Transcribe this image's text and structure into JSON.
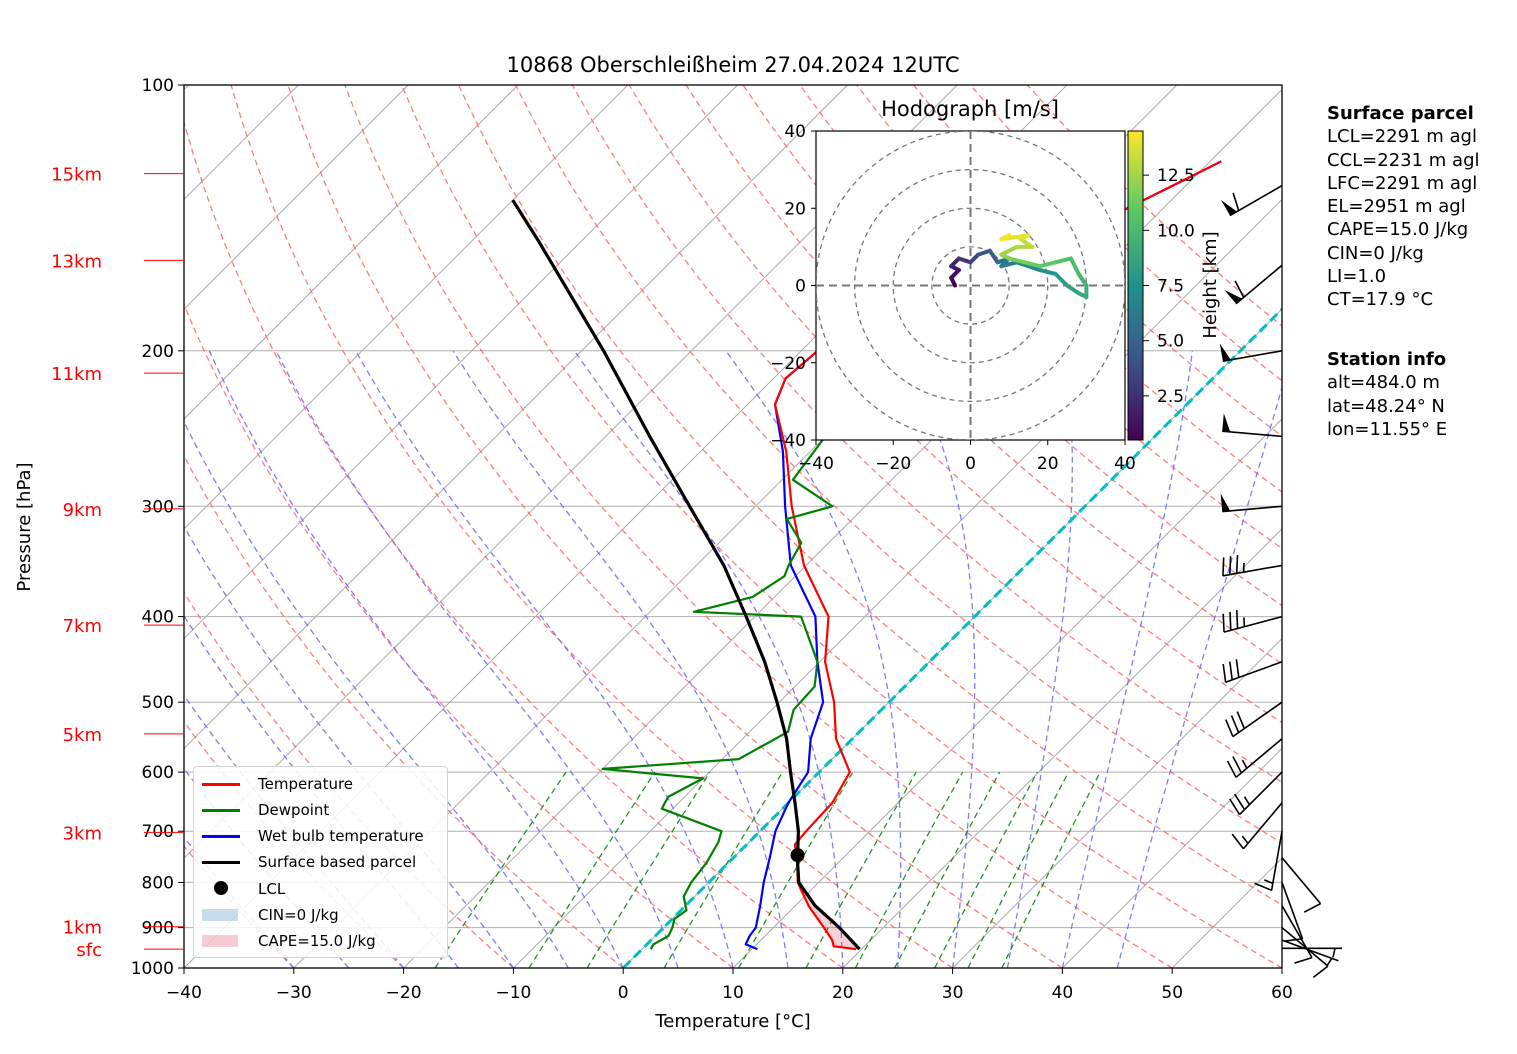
{
  "chart_data": {
    "type": "skew-t",
    "title": "10868 Oberschleißheim 27.04.2024 12UTC",
    "xlabel": "Temperature [°C]",
    "ylabel": "Pressure [hPa]",
    "xlim": [
      -40,
      60
    ],
    "ylim": [
      1000,
      100
    ],
    "x_ticks": [
      "−40",
      "−30",
      "−20",
      "−10",
      "0",
      "10",
      "20",
      "30",
      "40",
      "50",
      "60"
    ],
    "y_ticks": [
      "100",
      "200",
      "300",
      "400",
      "500",
      "600",
      "700",
      "800",
      "900",
      "1000"
    ],
    "height_labels": [
      {
        "label": "15km",
        "p": 126
      },
      {
        "label": "13km",
        "p": 158
      },
      {
        "label": "11km",
        "p": 212
      },
      {
        "label": "9km",
        "p": 302
      },
      {
        "label": "7km",
        "p": 409
      },
      {
        "label": "5km",
        "p": 543
      },
      {
        "label": "3km",
        "p": 702
      },
      {
        "label": "1km",
        "p": 898
      },
      {
        "label": "sfc",
        "p": 952
      }
    ],
    "legend": {
      "placement": "lower-left",
      "entries": [
        "Temperature",
        "Dewpoint",
        "Wet bulb temperature",
        "Surface based parcel",
        "LCL",
        "CIN=0 J/kg",
        "CAPE=15.0 J/kg"
      ]
    },
    "colors": {
      "temperature": "#ff0000",
      "dewpoint": "#008000",
      "wetbulb": "#0000ff",
      "parcel": "#000000",
      "dry_adiabat": "#ff6666",
      "moist_adiabat": "#6666ff",
      "mixing_ratio": "#008000",
      "zero_isotherm": "#00bfbf"
    },
    "series": [
      {
        "name": "Temperature",
        "points": [
          [
            952,
            19.5
          ],
          [
            945,
            17.2
          ],
          [
            930,
            16.5
          ],
          [
            900,
            14.6
          ],
          [
            850,
            11.2
          ],
          [
            800,
            8.1
          ],
          [
            750,
            5.8
          ],
          [
            725,
            4.4
          ],
          [
            700,
            4.2
          ],
          [
            650,
            4.0
          ],
          [
            600,
            2.8
          ],
          [
            550,
            -1.5
          ],
          [
            500,
            -5.0
          ],
          [
            450,
            -9.5
          ],
          [
            400,
            -13.3
          ],
          [
            350,
            -20.2
          ],
          [
            300,
            -26.7
          ],
          [
            260,
            -32.2
          ],
          [
            230,
            -37.5
          ],
          [
            215,
            -38.9
          ],
          [
            200,
            -38.5
          ],
          [
            190,
            -36.2
          ],
          [
            185,
            -33.6
          ],
          [
            175,
            -30.2
          ],
          [
            160,
            -27.8
          ],
          [
            150,
            -26.0
          ],
          [
            140,
            -23.8
          ],
          [
            130,
            -21.2
          ],
          [
            122,
            -19.0
          ]
        ]
      },
      {
        "name": "Dewpoint",
        "points": [
          [
            952,
            0.8
          ],
          [
            940,
            0.6
          ],
          [
            920,
            1.2
          ],
          [
            900,
            0.8
          ],
          [
            880,
            0.2
          ],
          [
            860,
            0.5
          ],
          [
            830,
            -1.0
          ],
          [
            800,
            -1.6
          ],
          [
            760,
            -2.0
          ],
          [
            720,
            -2.8
          ],
          [
            700,
            -3.5
          ],
          [
            660,
            -11.0
          ],
          [
            640,
            -11.5
          ],
          [
            610,
            -10.0
          ],
          [
            595,
            -20.0
          ],
          [
            580,
            -8.5
          ],
          [
            540,
            -6.5
          ],
          [
            510,
            -8.0
          ],
          [
            480,
            -8.2
          ],
          [
            450,
            -10.2
          ],
          [
            400,
            -15.8
          ],
          [
            395,
            -26.0
          ],
          [
            380,
            -22.0
          ],
          [
            360,
            -21.0
          ],
          [
            350,
            -21.6
          ],
          [
            330,
            -22.5
          ],
          [
            310,
            -26.0
          ],
          [
            300,
            -23.0
          ],
          [
            280,
            -29.0
          ],
          [
            250,
            -30.0
          ],
          [
            230,
            -30.0
          ],
          [
            210,
            -31.0
          ],
          [
            190,
            -31.0
          ],
          [
            170,
            -34.0
          ],
          [
            150,
            -34.0
          ],
          [
            140,
            -33.0
          ],
          [
            130,
            -31.0
          ],
          [
            125,
            -30.0
          ],
          [
            122,
            -30.0
          ]
        ]
      },
      {
        "name": "Wet bulb temperature",
        "points": [
          [
            952,
            10.5
          ],
          [
            940,
            9.0
          ],
          [
            920,
            8.6
          ],
          [
            900,
            8.4
          ],
          [
            850,
            6.8
          ],
          [
            800,
            5.0
          ],
          [
            750,
            3.3
          ],
          [
            700,
            1.4
          ],
          [
            650,
            0.0
          ],
          [
            600,
            -1.0
          ],
          [
            550,
            -3.8
          ],
          [
            500,
            -6.0
          ],
          [
            450,
            -10.2
          ],
          [
            400,
            -14.5
          ],
          [
            350,
            -21.4
          ],
          [
            300,
            -27.3
          ],
          [
            260,
            -32.5
          ],
          [
            230,
            -37.5
          ],
          [
            215,
            -38.9
          ],
          [
            200,
            -38.5
          ],
          [
            190,
            -36.2
          ],
          [
            185,
            -33.6
          ],
          [
            175,
            -30.2
          ],
          [
            160,
            -27.8
          ],
          [
            150,
            -26.0
          ],
          [
            140,
            -23.8
          ],
          [
            130,
            -21.2
          ],
          [
            122,
            -19.0
          ]
        ]
      },
      {
        "name": "Surface based parcel",
        "points": [
          [
            952,
            19.8
          ],
          [
            900,
            16.0
          ],
          [
            850,
            11.8
          ],
          [
            800,
            8.2
          ],
          [
            760,
            6.3
          ],
          [
            745,
            5.6
          ],
          [
            700,
            3.5
          ],
          [
            650,
            0.6
          ],
          [
            600,
            -2.6
          ],
          [
            550,
            -6.0
          ],
          [
            500,
            -10.2
          ],
          [
            450,
            -15.0
          ],
          [
            400,
            -20.8
          ],
          [
            350,
            -27.5
          ],
          [
            300,
            -36.0
          ],
          [
            250,
            -46.0
          ],
          [
            200,
            -58.0
          ],
          [
            150,
            -74.0
          ],
          [
            135,
            -80.0
          ]
        ]
      }
    ],
    "lcl": {
      "p": 745,
      "t": 5.6
    },
    "hodograph": {
      "title": "Hodograph [m/s]",
      "xlim": [
        -40,
        40
      ],
      "ylim": [
        -40,
        40
      ],
      "ticks": [
        "−40",
        "−20",
        "0",
        "20",
        "40"
      ],
      "colorbar_label": "Height [km]",
      "colorbar_ticks": [
        "2.5",
        "5.0",
        "7.5",
        "10.0",
        "12.5"
      ],
      "colorbar_range": [
        0.5,
        14.5
      ],
      "path": [
        [
          -4,
          0,
          0.5
        ],
        [
          -5,
          2,
          1.0
        ],
        [
          -3,
          4,
          1.5
        ],
        [
          -5,
          5,
          2.0
        ],
        [
          -3,
          7,
          2.8
        ],
        [
          0,
          6,
          3.5
        ],
        [
          2,
          8,
          4.2
        ],
        [
          5,
          9,
          4.8
        ],
        [
          7,
          6,
          5.5
        ],
        [
          10,
          7,
          6.0
        ],
        [
          8,
          5,
          6.5
        ],
        [
          12,
          6,
          7.0
        ],
        [
          18,
          4,
          7.5
        ],
        [
          22,
          3,
          8.0
        ],
        [
          25,
          0,
          8.4
        ],
        [
          28,
          -2,
          8.8
        ],
        [
          30,
          -3,
          9.2
        ],
        [
          30,
          0,
          9.6
        ],
        [
          28,
          3,
          10.0
        ],
        [
          26,
          7,
          10.4
        ],
        [
          22,
          6,
          10.8
        ],
        [
          18,
          5,
          11.2
        ],
        [
          14,
          6,
          11.6
        ],
        [
          10,
          7,
          12.0
        ],
        [
          8,
          8,
          12.4
        ],
        [
          12,
          10,
          12.8
        ],
        [
          16,
          10,
          13.2
        ],
        [
          13,
          12,
          13.6
        ],
        [
          15,
          13,
          14.0
        ],
        [
          8,
          12,
          14.3
        ],
        [
          10,
          13,
          14.5
        ]
      ]
    },
    "surface_parcel": {
      "heading": "Surface parcel",
      "lines": [
        "LCL=2291 m agl",
        "CCL=2231 m agl",
        "LFC=2291 m agl",
        "EL=2951 m agl",
        "CAPE=15.0 J/kg",
        "CIN=0 J/kg",
        "LI=1.0",
        "CT=17.9 °C"
      ]
    },
    "station_info": {
      "heading": "Station info",
      "lines": [
        "alt=484.0 m",
        "lat=48.24° N",
        "lon=11.55° E"
      ]
    },
    "wind_barbs": [
      {
        "p": 130,
        "dir": 240,
        "kt": 60
      },
      {
        "p": 160,
        "dir": 230,
        "kt": 60
      },
      {
        "p": 200,
        "dir": 260,
        "kt": 50
      },
      {
        "p": 250,
        "dir": 275,
        "kt": 50
      },
      {
        "p": 300,
        "dir": 265,
        "kt": 50
      },
      {
        "p": 350,
        "dir": 260,
        "kt": 35
      },
      {
        "p": 400,
        "dir": 255,
        "kt": 35
      },
      {
        "p": 450,
        "dir": 250,
        "kt": 30
      },
      {
        "p": 500,
        "dir": 235,
        "kt": 30
      },
      {
        "p": 550,
        "dir": 230,
        "kt": 25
      },
      {
        "p": 600,
        "dir": 225,
        "kt": 25
      },
      {
        "p": 650,
        "dir": 220,
        "kt": 15
      },
      {
        "p": 700,
        "dir": 190,
        "kt": 15
      },
      {
        "p": 750,
        "dir": 140,
        "kt": 10
      },
      {
        "p": 800,
        "dir": 160,
        "kt": 10
      },
      {
        "p": 850,
        "dir": 150,
        "kt": 10
      },
      {
        "p": 900,
        "dir": 130,
        "kt": 10
      },
      {
        "p": 930,
        "dir": 110,
        "kt": 5
      },
      {
        "p": 950,
        "dir": 90,
        "kt": 5
      }
    ]
  }
}
